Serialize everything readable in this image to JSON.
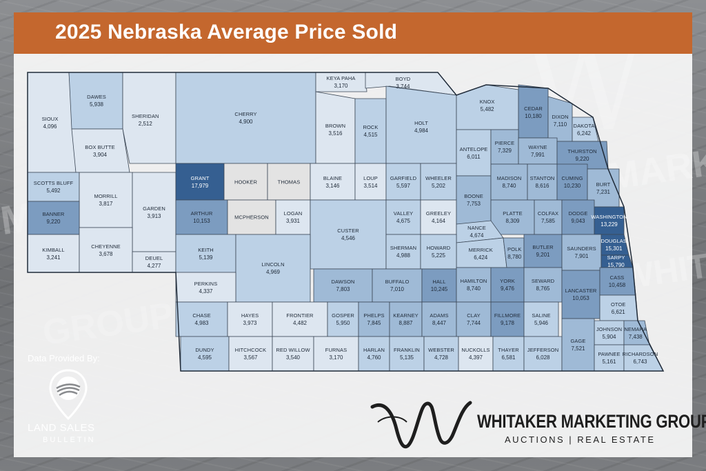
{
  "title": "2025 Nebraska Average Price Sold",
  "credit": {
    "label": "Data Provided By:"
  },
  "lsb": {
    "name": "LAND SALES",
    "sub": "BULLETIN",
    "icon": "map-pin-field-icon"
  },
  "wmg": {
    "name": "WHITAKER MARKETING GROUP",
    "sub": "AUCTIONS | REAL ESTATE",
    "logo": "w-monogram-logo"
  },
  "watermark": {
    "a": "MARKET",
    "b": "GROUP WHITAKER",
    "c": "MARKET GROUP",
    "d": "WHITAKER"
  },
  "colors": {
    "banner": "#c4672e",
    "lightest": "#dde6f0",
    "light": "#bcd1e6",
    "mid": "#9fbad6",
    "deep": "#7c9cc0",
    "darkest": "#355f91",
    "grey": "#e3e3e3"
  },
  "counties": [
    {
      "name": "Sioux",
      "price": "4,096"
    },
    {
      "name": "Dawes",
      "price": "5,938"
    },
    {
      "name": "Sheridan",
      "price": "2,512"
    },
    {
      "name": "Cherry",
      "price": "4,900"
    },
    {
      "name": "Keya Paha",
      "price": "3,170"
    },
    {
      "name": "Boyd",
      "price": "3,744"
    },
    {
      "name": "Box Butte",
      "price": "3,904"
    },
    {
      "name": "Brown",
      "price": "3,516"
    },
    {
      "name": "Rock",
      "price": "4,515"
    },
    {
      "name": "Holt",
      "price": "4,984"
    },
    {
      "name": "Knox",
      "price": "5,482"
    },
    {
      "name": "Cedar",
      "price": "10,180"
    },
    {
      "name": "Dixon",
      "price": "7,110"
    },
    {
      "name": "Dakota",
      "price": "6,242"
    },
    {
      "name": "Scotts Bluff",
      "price": "5,492"
    },
    {
      "name": "Morrill",
      "price": "3,817"
    },
    {
      "name": "Garden",
      "price": "3,913"
    },
    {
      "name": "Grant",
      "price": "17,979"
    },
    {
      "name": "Hooker",
      "price": ""
    },
    {
      "name": "Thomas",
      "price": ""
    },
    {
      "name": "Blaine",
      "price": "3,146"
    },
    {
      "name": "Loup",
      "price": "3,514"
    },
    {
      "name": "Garfield",
      "price": "5,597"
    },
    {
      "name": "Wheeler",
      "price": "5,202"
    },
    {
      "name": "Antelope",
      "price": "6,011"
    },
    {
      "name": "Pierce",
      "price": "7,329"
    },
    {
      "name": "Wayne",
      "price": "7,991"
    },
    {
      "name": "Thurston",
      "price": "9,220"
    },
    {
      "name": "Banner",
      "price": "9,220"
    },
    {
      "name": "Kimball",
      "price": "3,241"
    },
    {
      "name": "Cheyenne",
      "price": "3,678"
    },
    {
      "name": "Deuel",
      "price": "4,277"
    },
    {
      "name": "Arthur",
      "price": "10,153"
    },
    {
      "name": "McPherson",
      "price": ""
    },
    {
      "name": "Logan",
      "price": "3,931"
    },
    {
      "name": "Custer",
      "price": "4,546"
    },
    {
      "name": "Valley",
      "price": "4,675"
    },
    {
      "name": "Greeley",
      "price": "4,164"
    },
    {
      "name": "Boone",
      "price": "7,753"
    },
    {
      "name": "Madison",
      "price": "8,740"
    },
    {
      "name": "Stanton",
      "price": "8,616"
    },
    {
      "name": "Cuming",
      "price": "10,230"
    },
    {
      "name": "Burt",
      "price": "7,231"
    },
    {
      "name": "Keith",
      "price": "5,139"
    },
    {
      "name": "Lincoln",
      "price": "4,969"
    },
    {
      "name": "Platte",
      "price": "8,309"
    },
    {
      "name": "Colfax",
      "price": "7,585"
    },
    {
      "name": "Dodge",
      "price": "9,043"
    },
    {
      "name": "Washington",
      "price": "13,229"
    },
    {
      "name": "Nance",
      "price": "4,674"
    },
    {
      "name": "Merrick",
      "price": "6,424"
    },
    {
      "name": "Sherman",
      "price": "4,988"
    },
    {
      "name": "Howard",
      "price": "5,225"
    },
    {
      "name": "Polk",
      "price": "8,780"
    },
    {
      "name": "Butler",
      "price": "9,201"
    },
    {
      "name": "Saunders",
      "price": "7,901"
    },
    {
      "name": "Douglas",
      "price": "15,301"
    },
    {
      "name": "Sarpy",
      "price": "15,790"
    },
    {
      "name": "Perkins",
      "price": "4,337"
    },
    {
      "name": "Dawson",
      "price": "7,803"
    },
    {
      "name": "Buffalo",
      "price": "7,010"
    },
    {
      "name": "Hall",
      "price": "10,245"
    },
    {
      "name": "Hamilton",
      "price": "8,740"
    },
    {
      "name": "York",
      "price": "9,476"
    },
    {
      "name": "Seward",
      "price": "8,765"
    },
    {
      "name": "Lancaster",
      "price": "10,053"
    },
    {
      "name": "Cass",
      "price": "10,458"
    },
    {
      "name": "Otoe",
      "price": "6,621"
    },
    {
      "name": "Chase",
      "price": "4,983"
    },
    {
      "name": "Hayes",
      "price": "3,973"
    },
    {
      "name": "Frontier",
      "price": "4,482"
    },
    {
      "name": "Gosper",
      "price": "5,950"
    },
    {
      "name": "Phelps",
      "price": "7,845"
    },
    {
      "name": "Kearney",
      "price": "8,887"
    },
    {
      "name": "Adams",
      "price": "8,447"
    },
    {
      "name": "Clay",
      "price": "7,744"
    },
    {
      "name": "Fillmore",
      "price": "9,178"
    },
    {
      "name": "Saline",
      "price": "5,946"
    },
    {
      "name": "Johnson",
      "price": "5,904"
    },
    {
      "name": "Nemaha",
      "price": "7,438"
    },
    {
      "name": "Dundy",
      "price": "4,595"
    },
    {
      "name": "Hitchcock",
      "price": "3,567"
    },
    {
      "name": "Red Willow",
      "price": "3,540"
    },
    {
      "name": "Furnas",
      "price": "3,170"
    },
    {
      "name": "Harlan",
      "price": "4,760"
    },
    {
      "name": "Franklin",
      "price": "5,135"
    },
    {
      "name": "Webster",
      "price": "4,728"
    },
    {
      "name": "Nuckolls",
      "price": "4,397"
    },
    {
      "name": "Thayer",
      "price": "6,581"
    },
    {
      "name": "Jefferson",
      "price": "6,028"
    },
    {
      "name": "Gage",
      "price": "7,521"
    },
    {
      "name": "Pawnee",
      "price": "5,161"
    },
    {
      "name": "Richardson",
      "price": "6,743"
    }
  ]
}
